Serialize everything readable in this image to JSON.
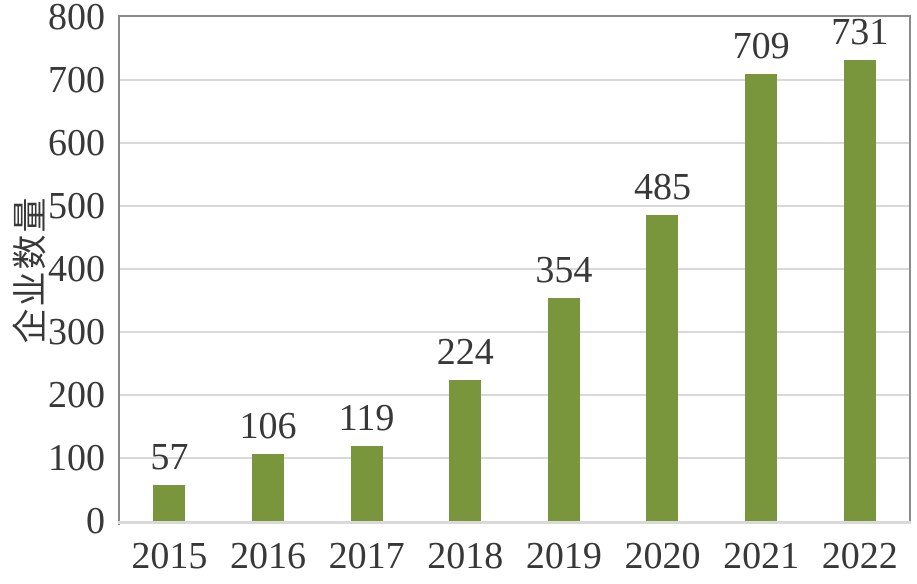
{
  "chart_data": {
    "type": "bar",
    "title": "",
    "xlabel": "",
    "ylabel": "企业数量",
    "categories": [
      "2015",
      "2016",
      "2017",
      "2018",
      "2019",
      "2020",
      "2021",
      "2022"
    ],
    "values": [
      57,
      106,
      119,
      224,
      354,
      485,
      709,
      731
    ],
    "data_labels": [
      "57",
      "106",
      "119",
      "224",
      "354",
      "485",
      "709",
      "731"
    ],
    "ylim": [
      0,
      800
    ],
    "ytick_step": 100,
    "yticks": [
      "0",
      "100",
      "200",
      "300",
      "400",
      "500",
      "600",
      "700",
      "800"
    ],
    "grid": "horizontal",
    "legend_position": "none",
    "colors": {
      "bar": "#79963D",
      "gridline": "#D9D9D9",
      "plot_border": "#8A8A8A",
      "bottom_axis_line": "#D9D9D9",
      "text": "#383838",
      "background": "#FFFFFF"
    }
  }
}
